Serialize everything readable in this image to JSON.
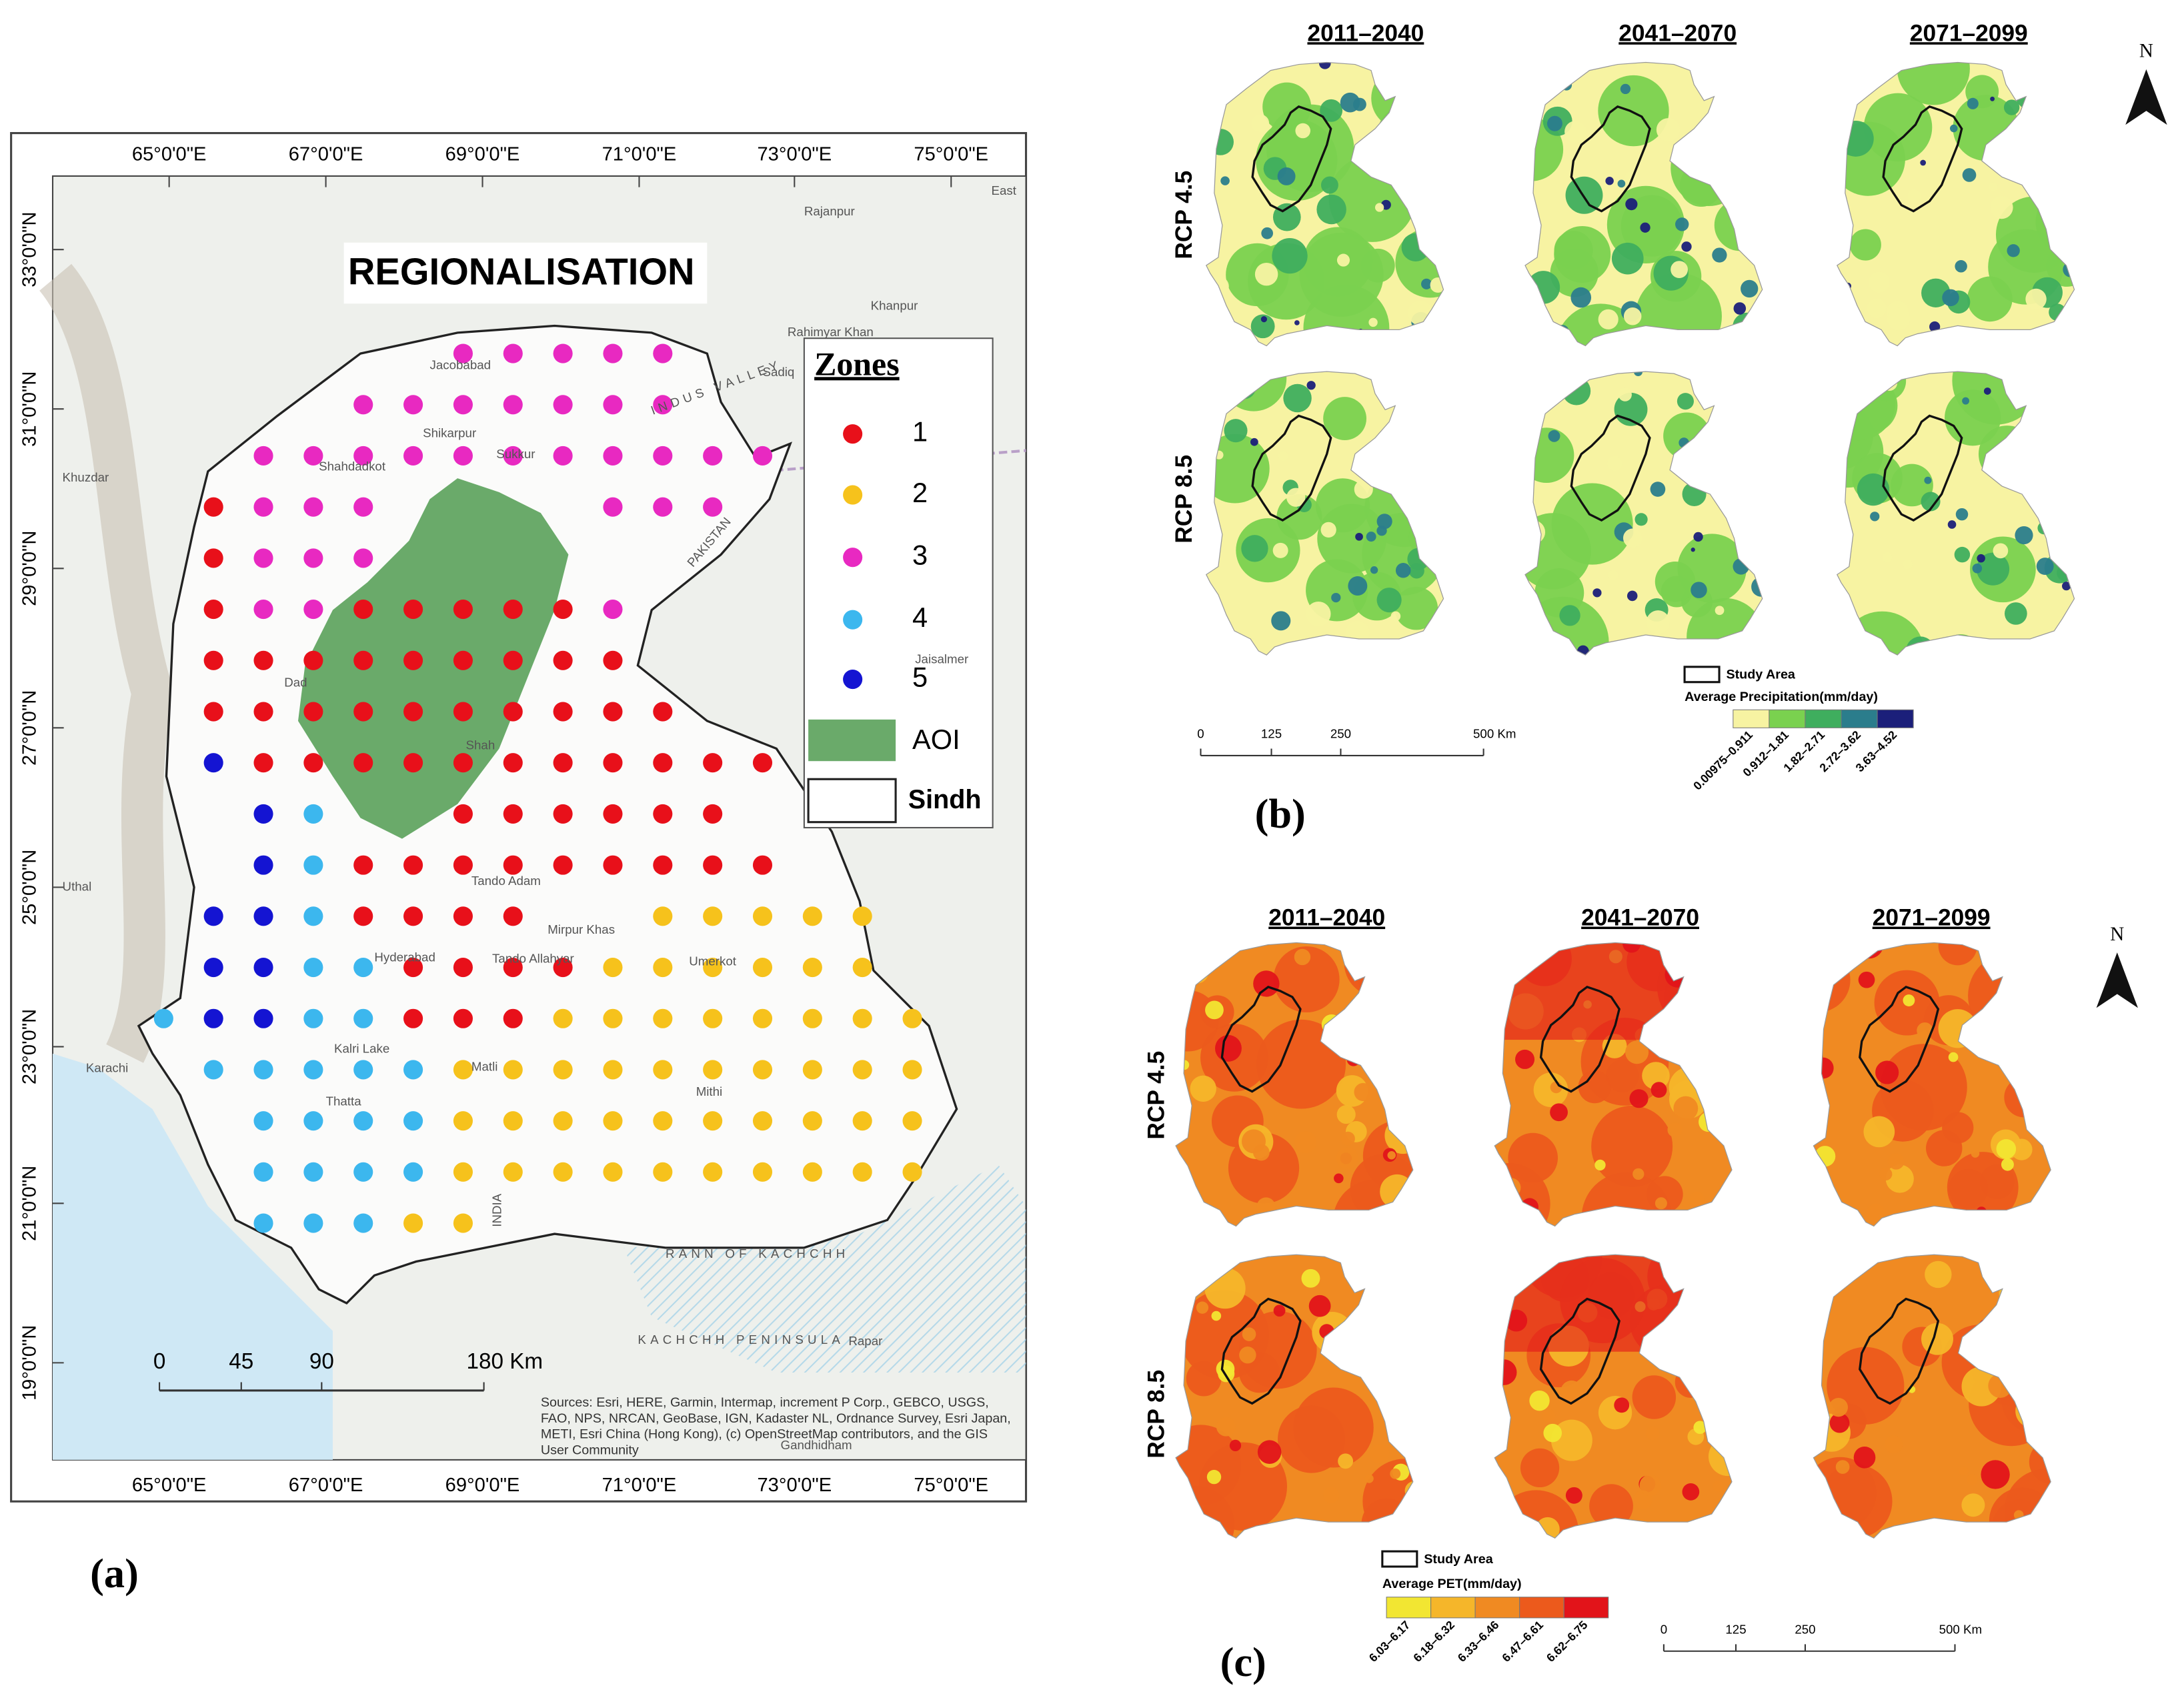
{
  "panel_a": {
    "title": "REGIONALISATION",
    "label": "(a)",
    "lon_labels": [
      "65°0'0\"E",
      "67°0'0\"E",
      "69°0'0\"E",
      "71°0'0\"E",
      "73°0'0\"E",
      "75°0'0\"E"
    ],
    "lat_labels": [
      "33°0'0\"N",
      "31°0'0\"N",
      "29°0'0\"N",
      "27°0'0\"N",
      "25°0'0\"N",
      "23°0'0\"N",
      "21°0'0\"N",
      "19°0'0\"N"
    ],
    "legend": {
      "title": "Zones",
      "items": [
        {
          "label": "1",
          "color": "#e8101a"
        },
        {
          "label": "2",
          "color": "#f6c21c"
        },
        {
          "label": "3",
          "color": "#e829c1"
        },
        {
          "label": "4",
          "color": "#3cb7ee"
        },
        {
          "label": "5",
          "color": "#1414d2"
        }
      ],
      "aoi": "AOI",
      "aoi_color": "#6aaa6a",
      "sindh": "Sindh"
    },
    "scale": [
      "0",
      "45",
      "90",
      "180 Km"
    ],
    "sources": [
      "Sources: Esri, HERE, Garmin, Intermap, increment P Corp., GEBCO, USGS,",
      "FAO, NPS, NRCAN, GeoBase, IGN, Kadaster NL, Ordnance Survey, Esri Japan,",
      "METI, Esri China (Hong Kong), (c) OpenStreetMap contributors, and the GIS",
      "User Community"
    ],
    "places": [
      "Jacobabad",
      "Shikarpur",
      "Shahdadkot",
      "Sukkur",
      "Khuzdar",
      "Dad",
      "Shah",
      "Tando Adam",
      "Mirpur Khas",
      "Hyderabad",
      "Tando Allahyar",
      "Matli",
      "Umerkot",
      "Mithi",
      "Thatta",
      "Karachi",
      "Uthal",
      "Rajanpur",
      "Khanpur",
      "Rahimyar Khan",
      "Sadiq",
      "Jaisalmer",
      "Gandhidham",
      "Rapar",
      "KACHCHH PENINSULA",
      "RANN OF KACHCHH",
      "INDIA",
      "PAKISTAN",
      "INDUS VALLEY",
      "Kalri Lake",
      "East"
    ],
    "zone_grid": [
      [
        null,
        null,
        null,
        null,
        null,
        null,
        3,
        3,
        3,
        3,
        3,
        null,
        null,
        null,
        null,
        null
      ],
      [
        null,
        null,
        null,
        null,
        3,
        3,
        3,
        3,
        3,
        3,
        3,
        null,
        null,
        null,
        null,
        null
      ],
      [
        null,
        null,
        3,
        3,
        3,
        3,
        3,
        3,
        3,
        3,
        3,
        3,
        3,
        null,
        null,
        null
      ],
      [
        null,
        1,
        3,
        3,
        3,
        null,
        null,
        null,
        null,
        3,
        3,
        3,
        null,
        null,
        null,
        null
      ],
      [
        null,
        1,
        3,
        3,
        3,
        null,
        null,
        null,
        null,
        null,
        null,
        null,
        null,
        null,
        null,
        null
      ],
      [
        null,
        1,
        3,
        3,
        1,
        1,
        1,
        1,
        1,
        3,
        null,
        null,
        null,
        null,
        null,
        null
      ],
      [
        null,
        1,
        1,
        1,
        1,
        1,
        1,
        1,
        1,
        1,
        null,
        null,
        null,
        null,
        null,
        null
      ],
      [
        null,
        1,
        1,
        1,
        1,
        1,
        1,
        1,
        1,
        1,
        1,
        null,
        null,
        null,
        null,
        null
      ],
      [
        null,
        5,
        1,
        1,
        1,
        1,
        1,
        1,
        1,
        1,
        1,
        1,
        1,
        null,
        null,
        null
      ],
      [
        null,
        null,
        5,
        4,
        null,
        null,
        1,
        1,
        1,
        1,
        1,
        1,
        null,
        null,
        null,
        null
      ],
      [
        null,
        null,
        5,
        4,
        1,
        1,
        1,
        1,
        1,
        1,
        1,
        1,
        1,
        null,
        null,
        null
      ],
      [
        null,
        5,
        5,
        4,
        1,
        1,
        1,
        1,
        null,
        null,
        2,
        2,
        2,
        2,
        2,
        null
      ],
      [
        null,
        5,
        5,
        4,
        4,
        1,
        1,
        1,
        1,
        2,
        2,
        2,
        2,
        2,
        2,
        null
      ],
      [
        4,
        5,
        5,
        4,
        4,
        1,
        1,
        1,
        2,
        2,
        2,
        2,
        2,
        2,
        2,
        2
      ],
      [
        null,
        4,
        4,
        4,
        4,
        4,
        2,
        2,
        2,
        2,
        2,
        2,
        2,
        2,
        2,
        2
      ],
      [
        null,
        null,
        4,
        4,
        4,
        4,
        2,
        2,
        2,
        2,
        2,
        2,
        2,
        2,
        2,
        2
      ],
      [
        null,
        null,
        4,
        4,
        4,
        4,
        2,
        2,
        2,
        2,
        2,
        2,
        2,
        2,
        2,
        2
      ],
      [
        null,
        null,
        4,
        4,
        4,
        2,
        2,
        null,
        null,
        null,
        null,
        null,
        null,
        null,
        null,
        null
      ]
    ]
  },
  "panel_b": {
    "label": "(b)",
    "north": "N",
    "periods": [
      "2011–2040",
      "2041–2070",
      "2071–2099"
    ],
    "scenarios": [
      "RCP 4.5",
      "RCP 8.5"
    ],
    "study_area": "Study Area",
    "legend_title": "Average Precipitation(mm/day)",
    "classes": [
      {
        "label": "0.00975–0.911",
        "color": "#f7f3a2"
      },
      {
        "label": "0.912–1.81",
        "color": "#7ad14f"
      },
      {
        "label": "1.82–2.71",
        "color": "#3fae5e"
      },
      {
        "label": "2.72–3.62",
        "color": "#2b7d8c"
      },
      {
        "label": "3.63–4.52",
        "color": "#1b1f7a"
      }
    ],
    "scale": [
      "0",
      "125",
      "250",
      "500 Km"
    ]
  },
  "panel_c": {
    "label": "(c)",
    "north": "N",
    "periods": [
      "2011–2040",
      "2041–2070",
      "2071–2099"
    ],
    "scenarios": [
      "RCP 4.5",
      "RCP 8.5"
    ],
    "study_area": "Study Area",
    "legend_title": "Average PET(mm/day)",
    "classes": [
      {
        "label": "6.03–6.17",
        "color": "#f2e632"
      },
      {
        "label": "6.18–6.32",
        "color": "#f5b62a"
      },
      {
        "label": "6.33–6.46",
        "color": "#f08a22"
      },
      {
        "label": "6.47–6.61",
        "color": "#ec5a1c"
      },
      {
        "label": "6.62–6.75",
        "color": "#e2141a"
      }
    ],
    "scale": [
      "0",
      "125",
      "250",
      "500 Km"
    ]
  }
}
